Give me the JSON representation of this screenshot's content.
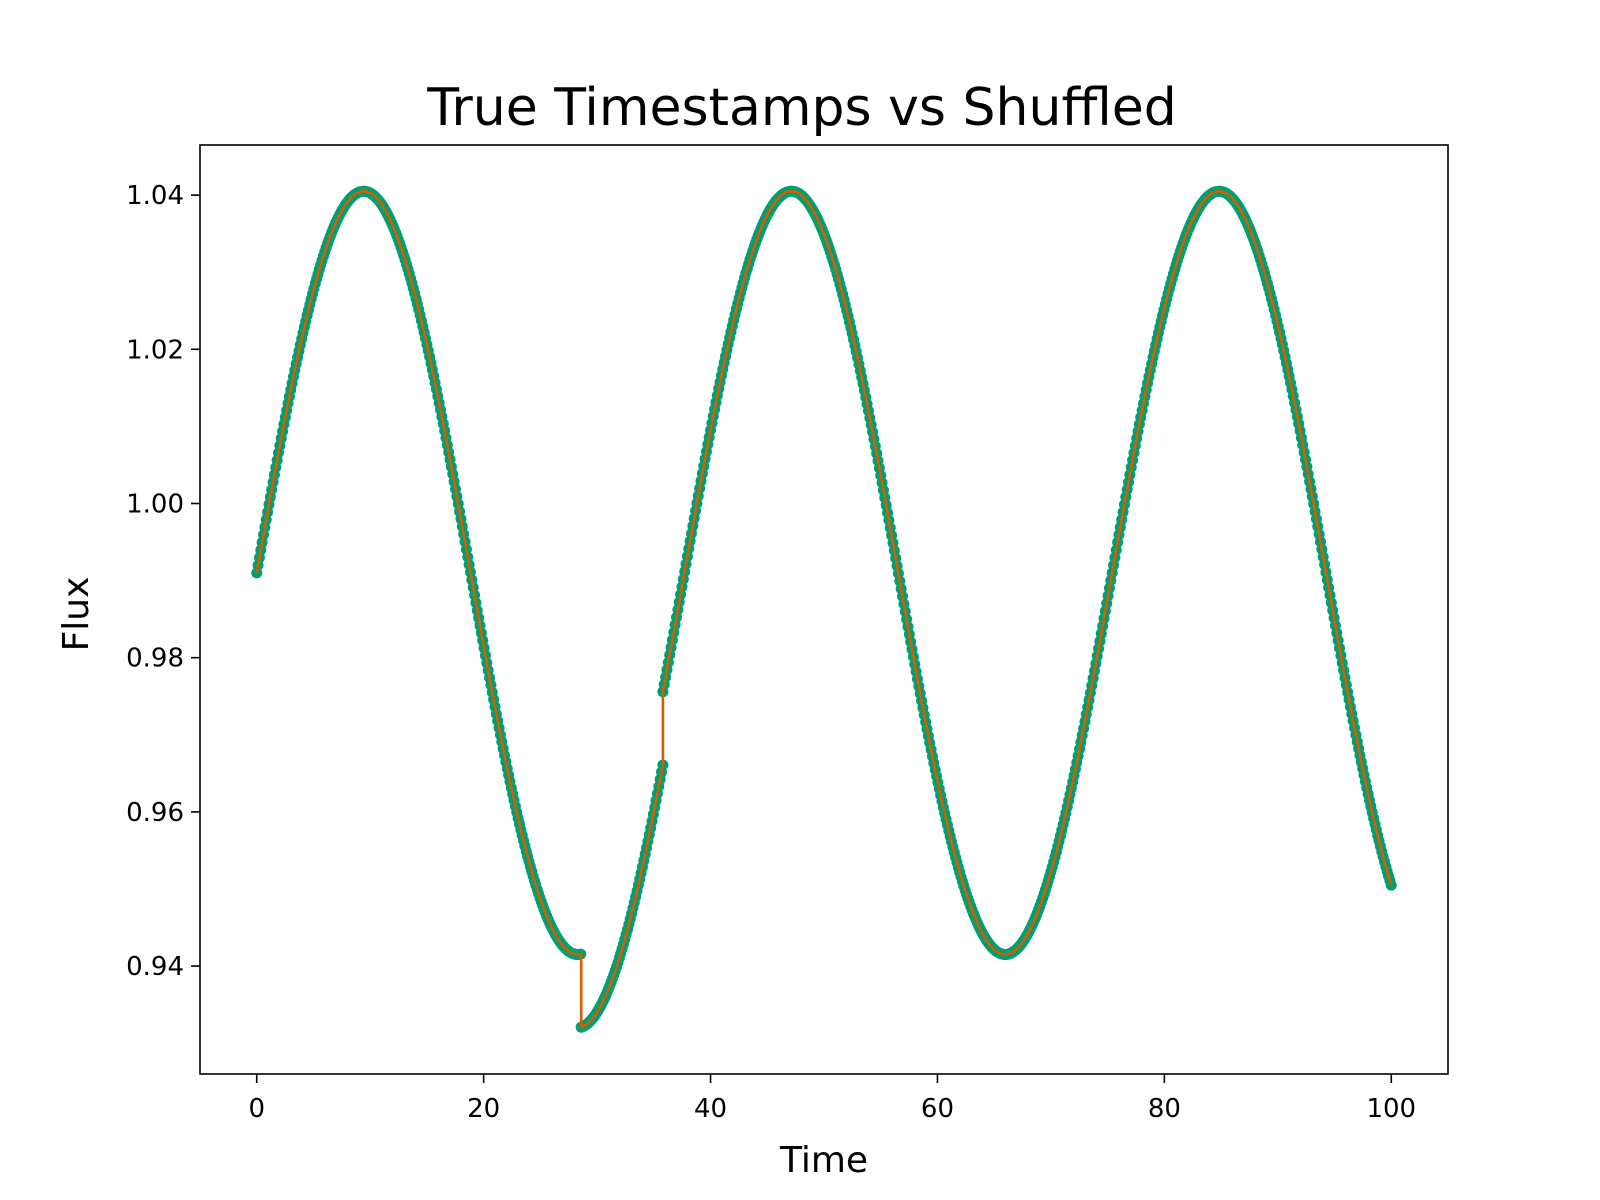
{
  "chart_data": {
    "type": "scatter",
    "title": "True Timestamps vs Shuffled",
    "xlabel": "Time",
    "ylabel": "Flux",
    "xlim": [
      -5,
      105
    ],
    "ylim": [
      0.926,
      1.0465
    ],
    "xticks": [
      0,
      20,
      40,
      60,
      80,
      100
    ],
    "xtick_labels": [
      "0",
      "20",
      "40",
      "60",
      "80",
      "100"
    ],
    "yticks": [
      0.94,
      0.96,
      0.98,
      1.0,
      1.02,
      1.04
    ],
    "ytick_labels": [
      "0.94",
      "0.96",
      "0.98",
      "1.00",
      "1.02",
      "1.04"
    ],
    "grid": false,
    "legend": "none",
    "x_range": [
      0,
      100
    ],
    "series": [
      {
        "kind": "points",
        "color": "#009e73",
        "model": {
          "baseline": 0.991,
          "amplitude": 0.0495,
          "period": 37.7,
          "phase_offset": 0.0
        },
        "segments": [
          {
            "x_start": 0.0,
            "x_end": 28.6
          },
          {
            "x_start": 28.6,
            "x_end": 35.8,
            "flux_shift": -0.0095
          },
          {
            "x_start": 35.8,
            "x_end": 100.0
          }
        ]
      },
      {
        "kind": "line",
        "color": "#d55e00",
        "model": {
          "baseline": 0.991,
          "amplitude": 0.0495,
          "period": 37.7,
          "phase_offset": 0.0
        },
        "segments": [
          {
            "x_start": 0.0,
            "x_end": 28.6
          },
          {
            "x_start": 28.6,
            "x_end": 35.8,
            "flux_shift": -0.0095
          },
          {
            "x_start": 35.8,
            "x_end": 100.0
          }
        ]
      }
    ]
  }
}
